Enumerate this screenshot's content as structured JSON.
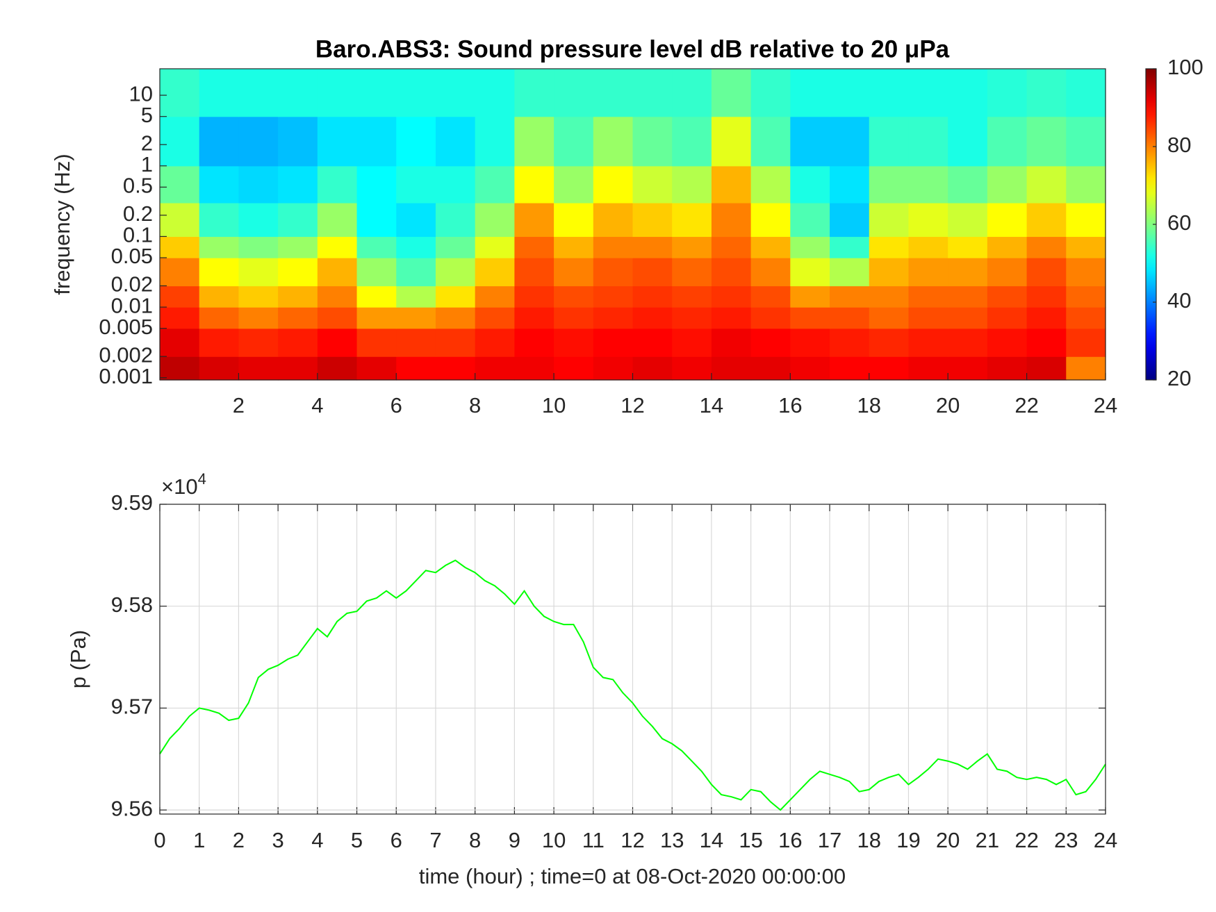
{
  "chart_data": [
    {
      "type": "heatmap",
      "title": "Baro.ABS3: Sound pressure level dB relative to 20 μPa",
      "ylabel": "frequency (Hz)",
      "x_bins": [
        0,
        1,
        2,
        3,
        4,
        5,
        6,
        7,
        8,
        9,
        10,
        11,
        12,
        13,
        14,
        15,
        16,
        17,
        18,
        19,
        20,
        21,
        22,
        23,
        24
      ],
      "y_bins": [
        0.00093,
        0.002,
        0.005,
        0.01,
        0.02,
        0.05,
        0.1,
        0.3,
        1,
        5,
        23.7
      ],
      "z": [
        [
          95,
          93,
          92,
          92,
          94,
          92,
          90,
          90,
          91,
          91,
          90,
          91,
          92,
          91,
          92,
          92,
          91,
          90,
          90,
          91,
          91,
          92,
          93,
          80
        ],
        [
          92,
          88,
          87,
          88,
          90,
          86,
          86,
          86,
          88,
          90,
          89,
          90,
          90,
          89,
          91,
          90,
          89,
          88,
          87,
          88,
          88,
          89,
          90,
          86
        ],
        [
          88,
          82,
          80,
          82,
          84,
          78,
          78,
          80,
          84,
          88,
          86,
          87,
          88,
          87,
          88,
          86,
          84,
          84,
          82,
          84,
          84,
          86,
          88,
          84
        ],
        [
          85,
          76,
          74,
          76,
          80,
          70,
          64,
          72,
          80,
          86,
          84,
          85,
          86,
          85,
          86,
          84,
          78,
          80,
          80,
          82,
          82,
          84,
          86,
          82
        ],
        [
          80,
          70,
          68,
          70,
          76,
          62,
          56,
          64,
          74,
          84,
          80,
          83,
          84,
          82,
          84,
          80,
          68,
          64,
          76,
          78,
          78,
          80,
          84,
          80
        ],
        [
          74,
          62,
          60,
          62,
          70,
          56,
          52,
          58,
          68,
          82,
          76,
          80,
          80,
          78,
          82,
          76,
          62,
          54,
          72,
          74,
          72,
          76,
          80,
          76
        ],
        [
          66,
          54,
          52,
          54,
          62,
          50,
          48,
          54,
          62,
          78,
          70,
          76,
          74,
          72,
          80,
          70,
          56,
          46,
          66,
          68,
          66,
          70,
          74,
          70
        ],
        [
          58,
          48,
          47,
          48,
          54,
          50,
          52,
          52,
          56,
          70,
          62,
          70,
          66,
          64,
          76,
          64,
          52,
          48,
          60,
          60,
          58,
          62,
          66,
          62
        ],
        [
          52,
          44,
          44,
          45,
          48,
          48,
          50,
          48,
          52,
          62,
          56,
          62,
          58,
          56,
          68,
          56,
          46,
          46,
          54,
          54,
          52,
          56,
          58,
          56
        ],
        [
          54,
          52,
          52,
          52,
          52,
          52,
          52,
          52,
          52,
          54,
          54,
          54,
          54,
          54,
          58,
          54,
          52,
          52,
          52,
          52,
          52,
          53,
          54,
          53
        ]
      ],
      "xlim": [
        0,
        24
      ],
      "xticks": [
        2,
        4,
        6,
        8,
        10,
        12,
        14,
        16,
        18,
        20,
        22,
        24
      ],
      "ylim": [
        0.00093,
        23.7
      ],
      "log_y": true,
      "yticks": [
        0.001,
        0.002,
        0.005,
        0.01,
        0.02,
        0.05,
        0.1,
        0.2,
        0.5,
        1,
        2,
        5,
        10
      ],
      "colorbar": {
        "clim": [
          20,
          100
        ],
        "ticks": [
          20,
          40,
          60,
          80,
          100
        ],
        "colormap": "jet"
      }
    },
    {
      "type": "line",
      "xlabel": "time (hour) ; time=0 at 08-Oct-2020 00:00:00",
      "ylabel": "p (Pa)",
      "exponent_label": {
        "base": "×10",
        "power": "4"
      },
      "x": [
        0,
        0.25,
        0.5,
        0.75,
        1,
        1.25,
        1.5,
        1.75,
        2,
        2.25,
        2.5,
        2.75,
        3,
        3.25,
        3.5,
        3.75,
        4,
        4.25,
        4.5,
        4.75,
        5,
        5.25,
        5.5,
        5.75,
        6,
        6.25,
        6.5,
        6.75,
        7,
        7.25,
        7.5,
        7.75,
        8,
        8.25,
        8.5,
        8.75,
        9,
        9.25,
        9.5,
        9.75,
        10,
        10.25,
        10.5,
        10.75,
        11,
        11.25,
        11.5,
        11.75,
        12,
        12.25,
        12.5,
        12.75,
        13,
        13.25,
        13.5,
        13.75,
        14,
        14.25,
        14.5,
        14.75,
        15,
        15.25,
        15.5,
        15.75,
        16,
        16.25,
        16.5,
        16.75,
        17,
        17.25,
        17.5,
        17.75,
        18,
        18.25,
        18.5,
        18.75,
        19,
        19.25,
        19.5,
        19.75,
        20,
        20.25,
        20.5,
        20.75,
        21,
        21.25,
        21.5,
        21.75,
        22,
        22.25,
        22.5,
        22.75,
        23,
        23.25,
        23.5,
        23.75,
        24
      ],
      "series": [
        {
          "color": "#00ff00",
          "values": [
            95655,
            95670,
            95680,
            95692,
            95700,
            95698,
            95695,
            95688,
            95690,
            95705,
            95730,
            95738,
            95742,
            95748,
            95752,
            95765,
            95778,
            95770,
            95785,
            95793,
            95795,
            95805,
            95808,
            95815,
            95808,
            95815,
            95825,
            95835,
            95833,
            95840,
            95845,
            95838,
            95833,
            95825,
            95820,
            95812,
            95802,
            95815,
            95800,
            95790,
            95785,
            95782,
            95782,
            95765,
            95740,
            95730,
            95728,
            95715,
            95705,
            95692,
            95682,
            95670,
            95665,
            95658,
            95648,
            95638,
            95625,
            95615,
            95613,
            95610,
            95620,
            95618,
            95608,
            95600,
            95610,
            95620,
            95630,
            95638,
            95635,
            95632,
            95628,
            95618,
            95620,
            95628,
            95632,
            95635,
            95625,
            95632,
            95640,
            95650,
            95648,
            95645,
            95640,
            95648,
            95655,
            95640,
            95638,
            95632,
            95630,
            95632,
            95630,
            95625,
            95630,
            95615,
            95618,
            95630,
            95645
          ]
        }
      ],
      "xlim": [
        0,
        24
      ],
      "xticks": [
        0,
        1,
        2,
        3,
        4,
        5,
        6,
        7,
        8,
        9,
        10,
        11,
        12,
        13,
        14,
        15,
        16,
        17,
        18,
        19,
        20,
        21,
        22,
        23,
        24
      ],
      "ylim": [
        95596,
        95900
      ],
      "yticks": [
        {
          "value": 95600,
          "label": "9.56"
        },
        {
          "value": 95700,
          "label": "9.57"
        },
        {
          "value": 95800,
          "label": "9.58"
        },
        {
          "value": 95900,
          "label": "9.59"
        }
      ],
      "grid": true
    }
  ]
}
